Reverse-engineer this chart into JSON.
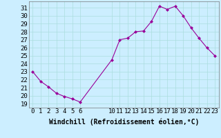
{
  "x": [
    0,
    1,
    2,
    3,
    4,
    5,
    6,
    10,
    11,
    12,
    13,
    14,
    15,
    16,
    17,
    18,
    19,
    20,
    21,
    22,
    23
  ],
  "y": [
    23,
    21.8,
    21.1,
    20.3,
    19.9,
    19.6,
    19.2,
    24.5,
    27.0,
    27.2,
    28.0,
    28.1,
    29.3,
    31.2,
    30.8,
    31.2,
    30.0,
    28.5,
    27.2,
    26.0,
    25.0
  ],
  "line_color": "#990099",
  "marker": "D",
  "markersize": 2,
  "linewidth": 0.8,
  "background_color": "#cceeff",
  "grid_color": "#aadddd",
  "xlabel": "Windchill (Refroidissement éolien,°C)",
  "xlabel_fontsize": 7,
  "tick_label_fontsize": 6.5,
  "ylim": [
    18.5,
    31.8
  ],
  "xlim": [
    -0.5,
    23.5
  ],
  "yticks": [
    19,
    20,
    21,
    22,
    23,
    24,
    25,
    26,
    27,
    28,
    29,
    30,
    31
  ],
  "xticks": [
    0,
    1,
    2,
    3,
    4,
    5,
    6,
    10,
    11,
    12,
    13,
    14,
    15,
    16,
    17,
    18,
    19,
    20,
    21,
    22,
    23
  ]
}
